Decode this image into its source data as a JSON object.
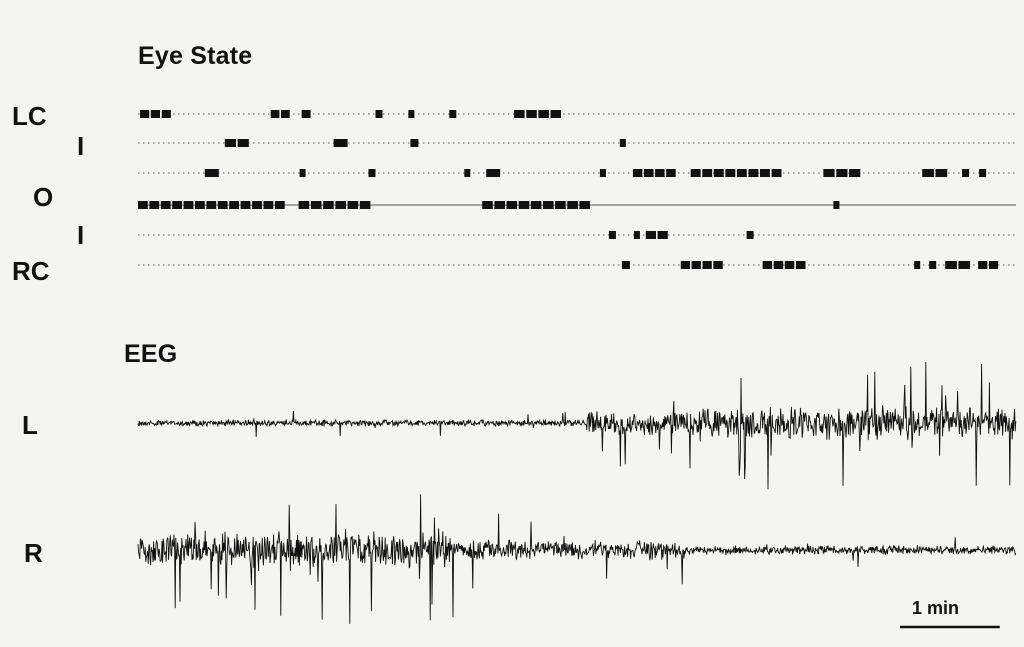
{
  "eye_state": {
    "title": "Eye State",
    "states": [
      {
        "label": "LC",
        "episodes": [
          [
            0.2,
            3.3
          ],
          [
            13.3,
            15.2
          ],
          [
            16.4,
            17.3
          ],
          [
            23.8,
            24.5
          ],
          [
            27.1,
            27.6
          ],
          [
            31.2,
            31.9
          ],
          [
            37.7,
            42.4
          ]
        ]
      },
      {
        "label": "I",
        "episodes": [
          [
            8.7,
            11.1
          ],
          [
            19.6,
            21.0
          ],
          [
            27.3,
            28.1
          ],
          [
            48.3,
            48.9
          ]
        ]
      },
      {
        "label": "",
        "episodes": [
          [
            6.7,
            8.1
          ],
          [
            16.2,
            16.8
          ],
          [
            23.1,
            23.8
          ],
          [
            32.7,
            33.3
          ],
          [
            34.9,
            36.3
          ],
          [
            46.3,
            46.9
          ],
          [
            49.6,
            53.9
          ],
          [
            55.4,
            64.5
          ],
          [
            68.7,
            72.4
          ],
          [
            78.6,
            81.1
          ],
          [
            82.6,
            83.3
          ],
          [
            84.3,
            85.0
          ]
        ]
      },
      {
        "label": "O",
        "episodes": [
          [
            0.0,
            14.7
          ],
          [
            16.1,
            23.3
          ],
          [
            34.5,
            45.3
          ],
          [
            69.7,
            70.3
          ]
        ]
      },
      {
        "label": "I",
        "episodes": [
          [
            47.2,
            47.9
          ],
          [
            49.7,
            50.3
          ],
          [
            50.9,
            53.1
          ],
          [
            61.0,
            61.7
          ]
        ]
      },
      {
        "label": "RC",
        "episodes": [
          [
            48.5,
            49.3
          ],
          [
            54.4,
            58.6
          ],
          [
            62.6,
            66.9
          ],
          [
            77.8,
            78.4
          ],
          [
            79.3,
            80.0
          ],
          [
            80.9,
            83.4
          ],
          [
            84.2,
            86.2
          ]
        ]
      }
    ]
  },
  "eeg": {
    "title": "EEG",
    "channels": [
      {
        "label": "L",
        "segments": [
          {
            "from": 0,
            "to": 45,
            "amplitude": 0.15,
            "spike_rate": 0.04
          },
          {
            "from": 45,
            "to": 55,
            "amplitude": 0.55,
            "spike_rate": 0.12
          },
          {
            "from": 55,
            "to": 88,
            "amplitude": 0.75,
            "spike_rate": 0.18
          }
        ]
      },
      {
        "label": "R",
        "segments": [
          {
            "from": 0,
            "to": 32,
            "amplitude": 0.7,
            "spike_rate": 0.15
          },
          {
            "from": 32,
            "to": 55,
            "amplitude": 0.4,
            "spike_rate": 0.08
          },
          {
            "from": 55,
            "to": 88,
            "amplitude": 0.18,
            "spike_rate": 0.03
          }
        ]
      }
    ]
  },
  "scale_bar": {
    "label": "1 min",
    "length": 10
  },
  "colors": {
    "ink": "#111111",
    "dotted": "#555555",
    "background": "#f4f4f2"
  }
}
